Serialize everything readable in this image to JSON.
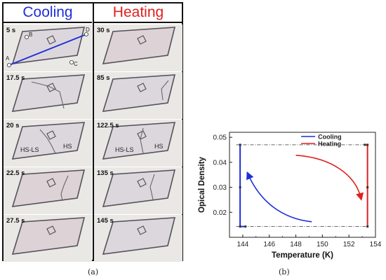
{
  "panel_a": {
    "cooling_header": "Cooling",
    "heating_header": "Heating",
    "cooling_times": [
      "5 s",
      "17.5 s",
      "20 s",
      "22.5 s",
      "27.5 s"
    ],
    "heating_times": [
      "30 s",
      "85 s",
      "122.5 s",
      "135 s",
      "145 s"
    ],
    "points": {
      "a": "A",
      "b": "B",
      "c": "C",
      "d": "D"
    },
    "region_hs_ls": "HS-LS",
    "region_hs": "HS",
    "caption": "(a)",
    "colors": {
      "cooling": "#1f2fd6",
      "heating": "#e0201e"
    }
  },
  "chart_data": {
    "type": "line",
    "xlabel": "Temperature (K)",
    "ylabel": "Opical Density",
    "xlim": [
      143,
      154
    ],
    "ylim": [
      0.01,
      0.052
    ],
    "xticks": [
      144,
      146,
      148,
      150,
      152,
      154
    ],
    "yticks": [
      0.02,
      0.03,
      0.04,
      0.05
    ],
    "xtick_labels": [
      "144",
      "146",
      "148",
      "150",
      "152",
      "154"
    ],
    "ytick_labels": [
      "0.02",
      "0.03",
      "0.04",
      "0.05"
    ],
    "grid": false,
    "legend_position": "top-right",
    "series": [
      {
        "name": "Cooling",
        "color": "#1f2fd6",
        "x": [
          143.8,
          143.8,
          143.8,
          144.2
        ],
        "y": [
          0.047,
          0.03,
          0.0143,
          0.0143
        ]
      },
      {
        "name": "Heating",
        "color": "#e0201e",
        "x": [
          153.2,
          153.4,
          153.4,
          153.4
        ],
        "y": [
          0.047,
          0.047,
          0.03,
          0.0143
        ]
      }
    ],
    "reference_lines": [
      0.047,
      0.0143
    ],
    "annotations": [
      {
        "type": "arrow",
        "color": "#1f2fd6",
        "x": [
          149.2,
          146.9,
          145.3,
          144.4
        ],
        "y": [
          0.0162,
          0.0175,
          0.0245,
          0.0352
        ]
      },
      {
        "type": "arrow",
        "color": "#e0201e",
        "x": [
          148.0,
          150.8,
          152.5,
          152.9
        ],
        "y": [
          0.0428,
          0.0418,
          0.0345,
          0.0258
        ]
      }
    ],
    "caption": "(b)"
  }
}
